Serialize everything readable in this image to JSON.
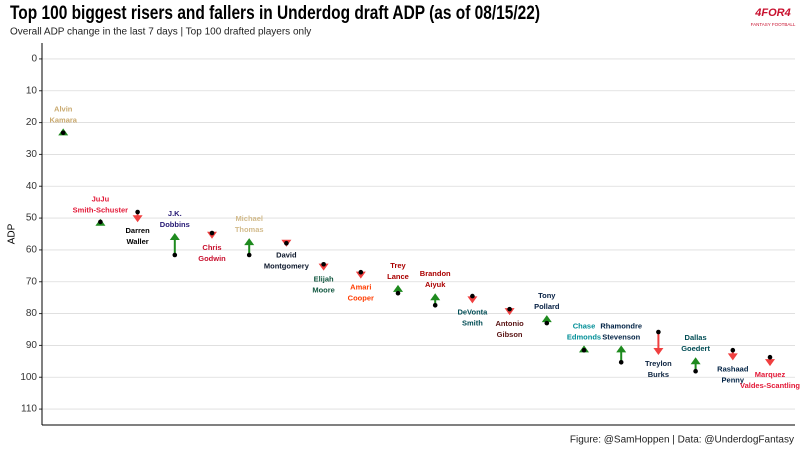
{
  "chart_data": {
    "type": "arrow",
    "title": "Top 100 biggest risers and fallers in Underdog draft ADP (as of 08/15/22)",
    "subtitle": "Overall ADP change in the last 7 days | Top 100 drafted players only",
    "caption": "Figure: @SamHoppen | Data: @UnderdogFantasy",
    "logo": "4FOR4",
    "logo_sub": "FANTASY FOOTBALL",
    "y_label": "ADP",
    "ylim": [
      -5,
      115
    ],
    "y_inverted": true,
    "yticks": [
      0,
      10,
      20,
      30,
      40,
      50,
      60,
      70,
      80,
      90,
      100,
      110
    ],
    "grid": true,
    "up_color": "#1e8a1e",
    "down_color": "#f04040",
    "labels": [
      [
        "Alvin",
        "Kamara"
      ],
      [
        "JuJu",
        "Smith-Schuster"
      ],
      [
        "Darren",
        "Waller"
      ],
      [
        "J.K.",
        "Dobbins"
      ],
      [
        "Chris",
        "Godwin"
      ],
      [
        "Michael",
        "Thomas"
      ],
      [
        "David",
        "Montgomery"
      ],
      [
        "Elijah",
        "Moore"
      ],
      [
        "Amari",
        "Cooper"
      ],
      [
        "Trey",
        "Lance"
      ],
      [
        "Brandon",
        "Aiyuk"
      ],
      [
        "DeVonta",
        "Smith"
      ],
      [
        "Antonio",
        "Gibson"
      ],
      [
        "Tony",
        "Pollard"
      ],
      [
        "Chase",
        "Edmonds"
      ],
      [
        "Rhamondre",
        "Stevenson"
      ],
      [
        "Treylon",
        "Burks"
      ],
      [
        "Dallas",
        "Goedert"
      ],
      [
        "Rashaad",
        "Penny"
      ],
      [
        "Marquez",
        "Valdes-Scantling"
      ]
    ],
    "label_colors": [
      "#c9a96e",
      "#e31837",
      "#000000",
      "#241773",
      "#c8102e",
      "#d3bc8d",
      "#0b162a",
      "#125740",
      "#ff3c00",
      "#aa0000",
      "#aa0000",
      "#004c54",
      "#5a1414",
      "#041e42",
      "#008e97",
      "#002244",
      "#0c2340",
      "#004c54",
      "#002244",
      "#e31837"
    ],
    "start_values": [
      23.2,
      51.2,
      48.1,
      61.6,
      54.7,
      61.6,
      57.9,
      64.5,
      67.0,
      73.6,
      77.4,
      74.5,
      78.6,
      83.0,
      91.5,
      95.3,
      85.8,
      98.1,
      91.5,
      93.7
    ],
    "end_values": [
      21.8,
      50.2,
      51.3,
      54.7,
      56.5,
      56.3,
      59.0,
      66.5,
      69.0,
      71.0,
      73.6,
      76.8,
      80.5,
      80.5,
      90.0,
      90.0,
      93.0,
      93.7,
      94.7,
      96.5
    ]
  }
}
